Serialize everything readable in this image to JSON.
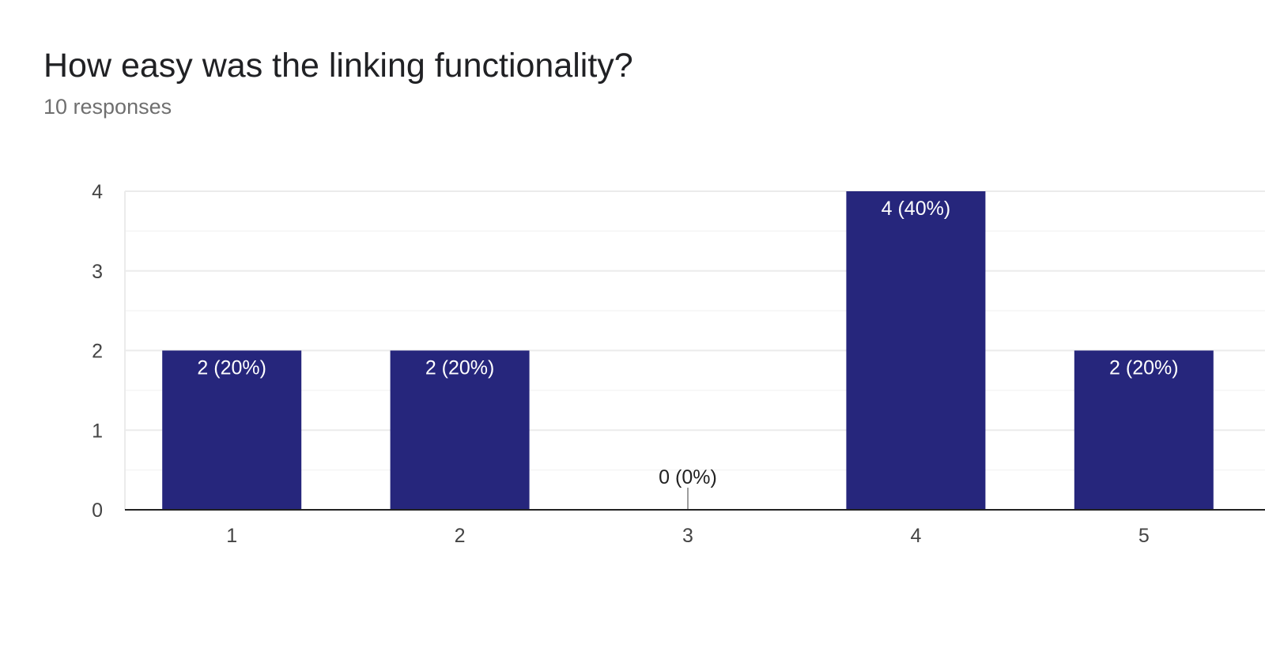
{
  "header": {
    "title": "How easy was the linking functionality?",
    "subtitle": "10 responses"
  },
  "colors": {
    "bar": "#26267c",
    "gridline": "#ebebeb",
    "minor_gridline": "#f5f5f5",
    "axis": "#222222",
    "inner_label": "#ffffff",
    "outer_label": "#222222",
    "zero_marker": "#9e9e9e"
  },
  "chart_data": {
    "type": "bar",
    "title": "How easy was the linking functionality?",
    "subtitle": "10 responses",
    "categories": [
      "1",
      "2",
      "3",
      "4",
      "5"
    ],
    "values": [
      2,
      2,
      0,
      4,
      2
    ],
    "data_labels": [
      "2 (20%)",
      "2 (20%)",
      "0 (0%)",
      "4 (40%)",
      "2 (20%)"
    ],
    "xlabel": "",
    "ylabel": "",
    "ylim": [
      0,
      4
    ],
    "yticks": [
      "0",
      "1",
      "2",
      "3",
      "4"
    ],
    "grid": true,
    "legend": "none"
  }
}
